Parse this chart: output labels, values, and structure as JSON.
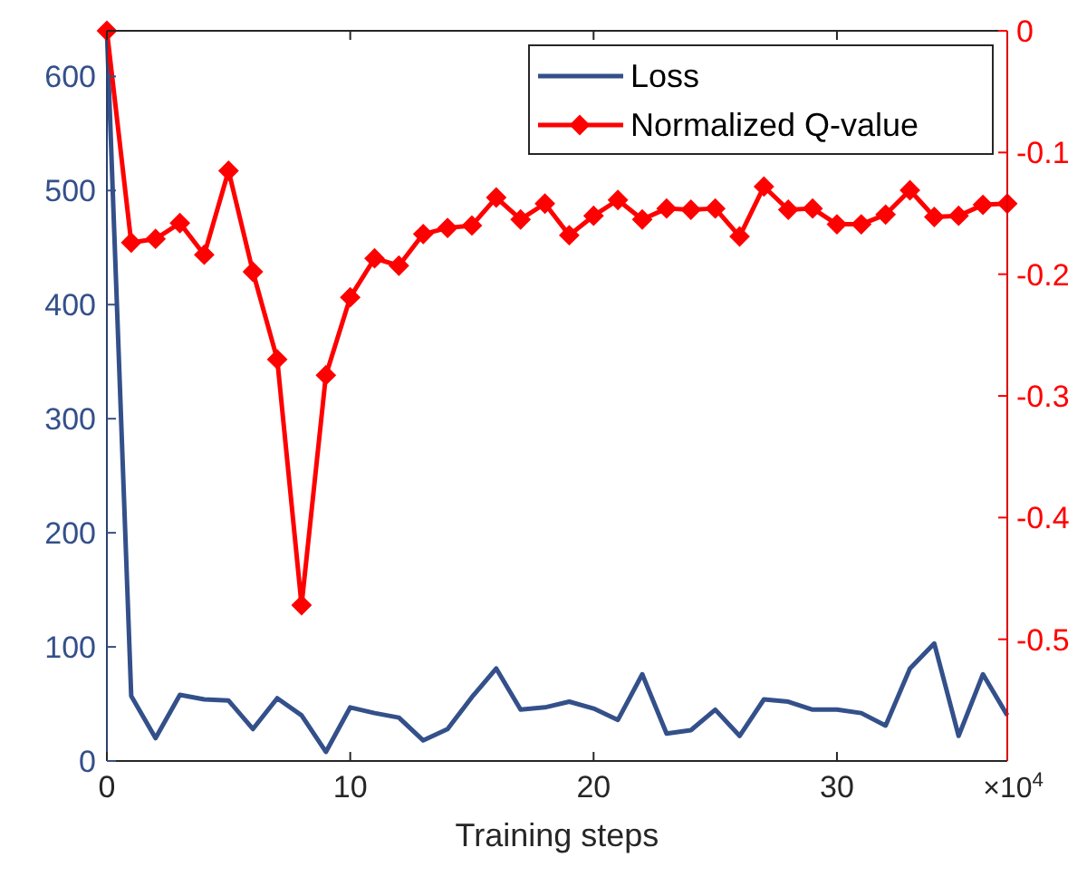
{
  "chart_data": {
    "type": "line",
    "xlabel": "Training steps",
    "annotations": [
      "×10$^{4}$"
    ],
    "x": [
      0,
      1,
      2,
      3,
      4,
      5,
      6,
      7,
      8,
      9,
      10,
      11,
      12,
      13,
      14,
      15,
      16,
      17,
      18,
      19,
      20,
      21,
      22,
      23,
      24,
      25,
      26,
      27,
      28,
      29,
      30,
      31,
      32,
      33,
      34,
      35,
      36,
      37
    ],
    "xlim": [
      0,
      37
    ],
    "xticks": [
      0,
      10,
      20,
      30
    ],
    "ylim": [
      0,
      640
    ],
    "yticks": [
      0,
      100,
      200,
      300,
      400,
      500,
      600
    ],
    "y2lim": [
      -0.6,
      0
    ],
    "y2ticks": [
      {
        "value": -0.5,
        "label": "-0.5"
      },
      {
        "value": -0.4,
        "label": "-0.4"
      },
      {
        "value": -0.3,
        "label": "-0.3"
      },
      {
        "value": -0.2,
        "label": "-0.2"
      },
      {
        "value": -0.1,
        "label": "-0.1"
      },
      0
    ],
    "legend": "top right",
    "grid": false,
    "line_style": "solid",
    "series": [
      {
        "name": "Loss",
        "color": "#34508a",
        "marker": "none",
        "values": [
          640,
          57,
          20,
          58,
          54,
          53,
          28,
          55,
          40,
          8,
          47,
          42,
          38,
          18,
          28,
          56,
          81,
          45,
          47,
          52,
          46,
          36,
          76,
          24,
          27,
          45,
          22,
          54,
          52,
          45,
          45,
          42,
          31,
          81,
          103,
          22,
          76,
          40
        ]
      },
      {
        "name": "Normalized Q-value",
        "color": "#ff0000",
        "marker": "diamond",
        "axis": "y2",
        "values": [
          0,
          -0.174,
          -0.171,
          -0.158,
          -0.184,
          -0.115,
          -0.198,
          -0.27,
          -0.472,
          -0.283,
          -0.219,
          -0.187,
          -0.193,
          -0.167,
          -0.162,
          -0.16,
          -0.137,
          -0.155,
          -0.142,
          -0.168,
          -0.152,
          -0.139,
          -0.155,
          -0.146,
          -0.147,
          -0.146,
          -0.169,
          -0.128,
          -0.147,
          -0.146,
          -0.159,
          -0.159,
          -0.151,
          -0.131,
          -0.153,
          -0.152,
          -0.143,
          -0.142
        ]
      }
    ]
  }
}
